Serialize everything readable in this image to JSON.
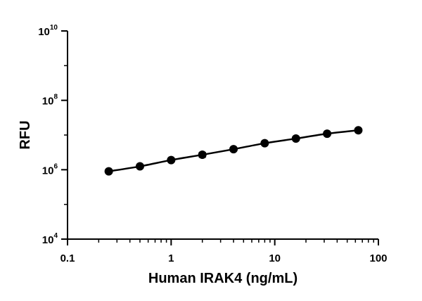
{
  "chart_data": {
    "type": "scatter",
    "title": "",
    "xlabel": "Human IRAK4 (ng/mL)",
    "ylabel": "RFU",
    "x_scale": "log",
    "y_scale": "log",
    "xlim": [
      0.1,
      100
    ],
    "ylim": [
      10000,
      10000000000
    ],
    "x_tick_labels": [
      "0.1",
      "1",
      "10",
      "100"
    ],
    "y_tick_labels": [
      {
        "base": "10",
        "exp": "4"
      },
      {
        "base": "10",
        "exp": "6"
      },
      {
        "base": "10",
        "exp": "8"
      },
      {
        "base": "10",
        "exp": "10"
      }
    ],
    "series": [
      {
        "x": [
          0.25,
          0.5,
          1,
          2,
          4,
          8,
          16,
          32,
          64
        ],
        "y": [
          900000,
          1250000,
          1900000,
          2700000,
          3900000,
          5800000,
          7900000,
          10900000,
          13700000
        ],
        "error": [
          null,
          null,
          null,
          400000,
          null,
          null,
          null,
          null,
          null
        ],
        "fit_line": true
      }
    ]
  }
}
